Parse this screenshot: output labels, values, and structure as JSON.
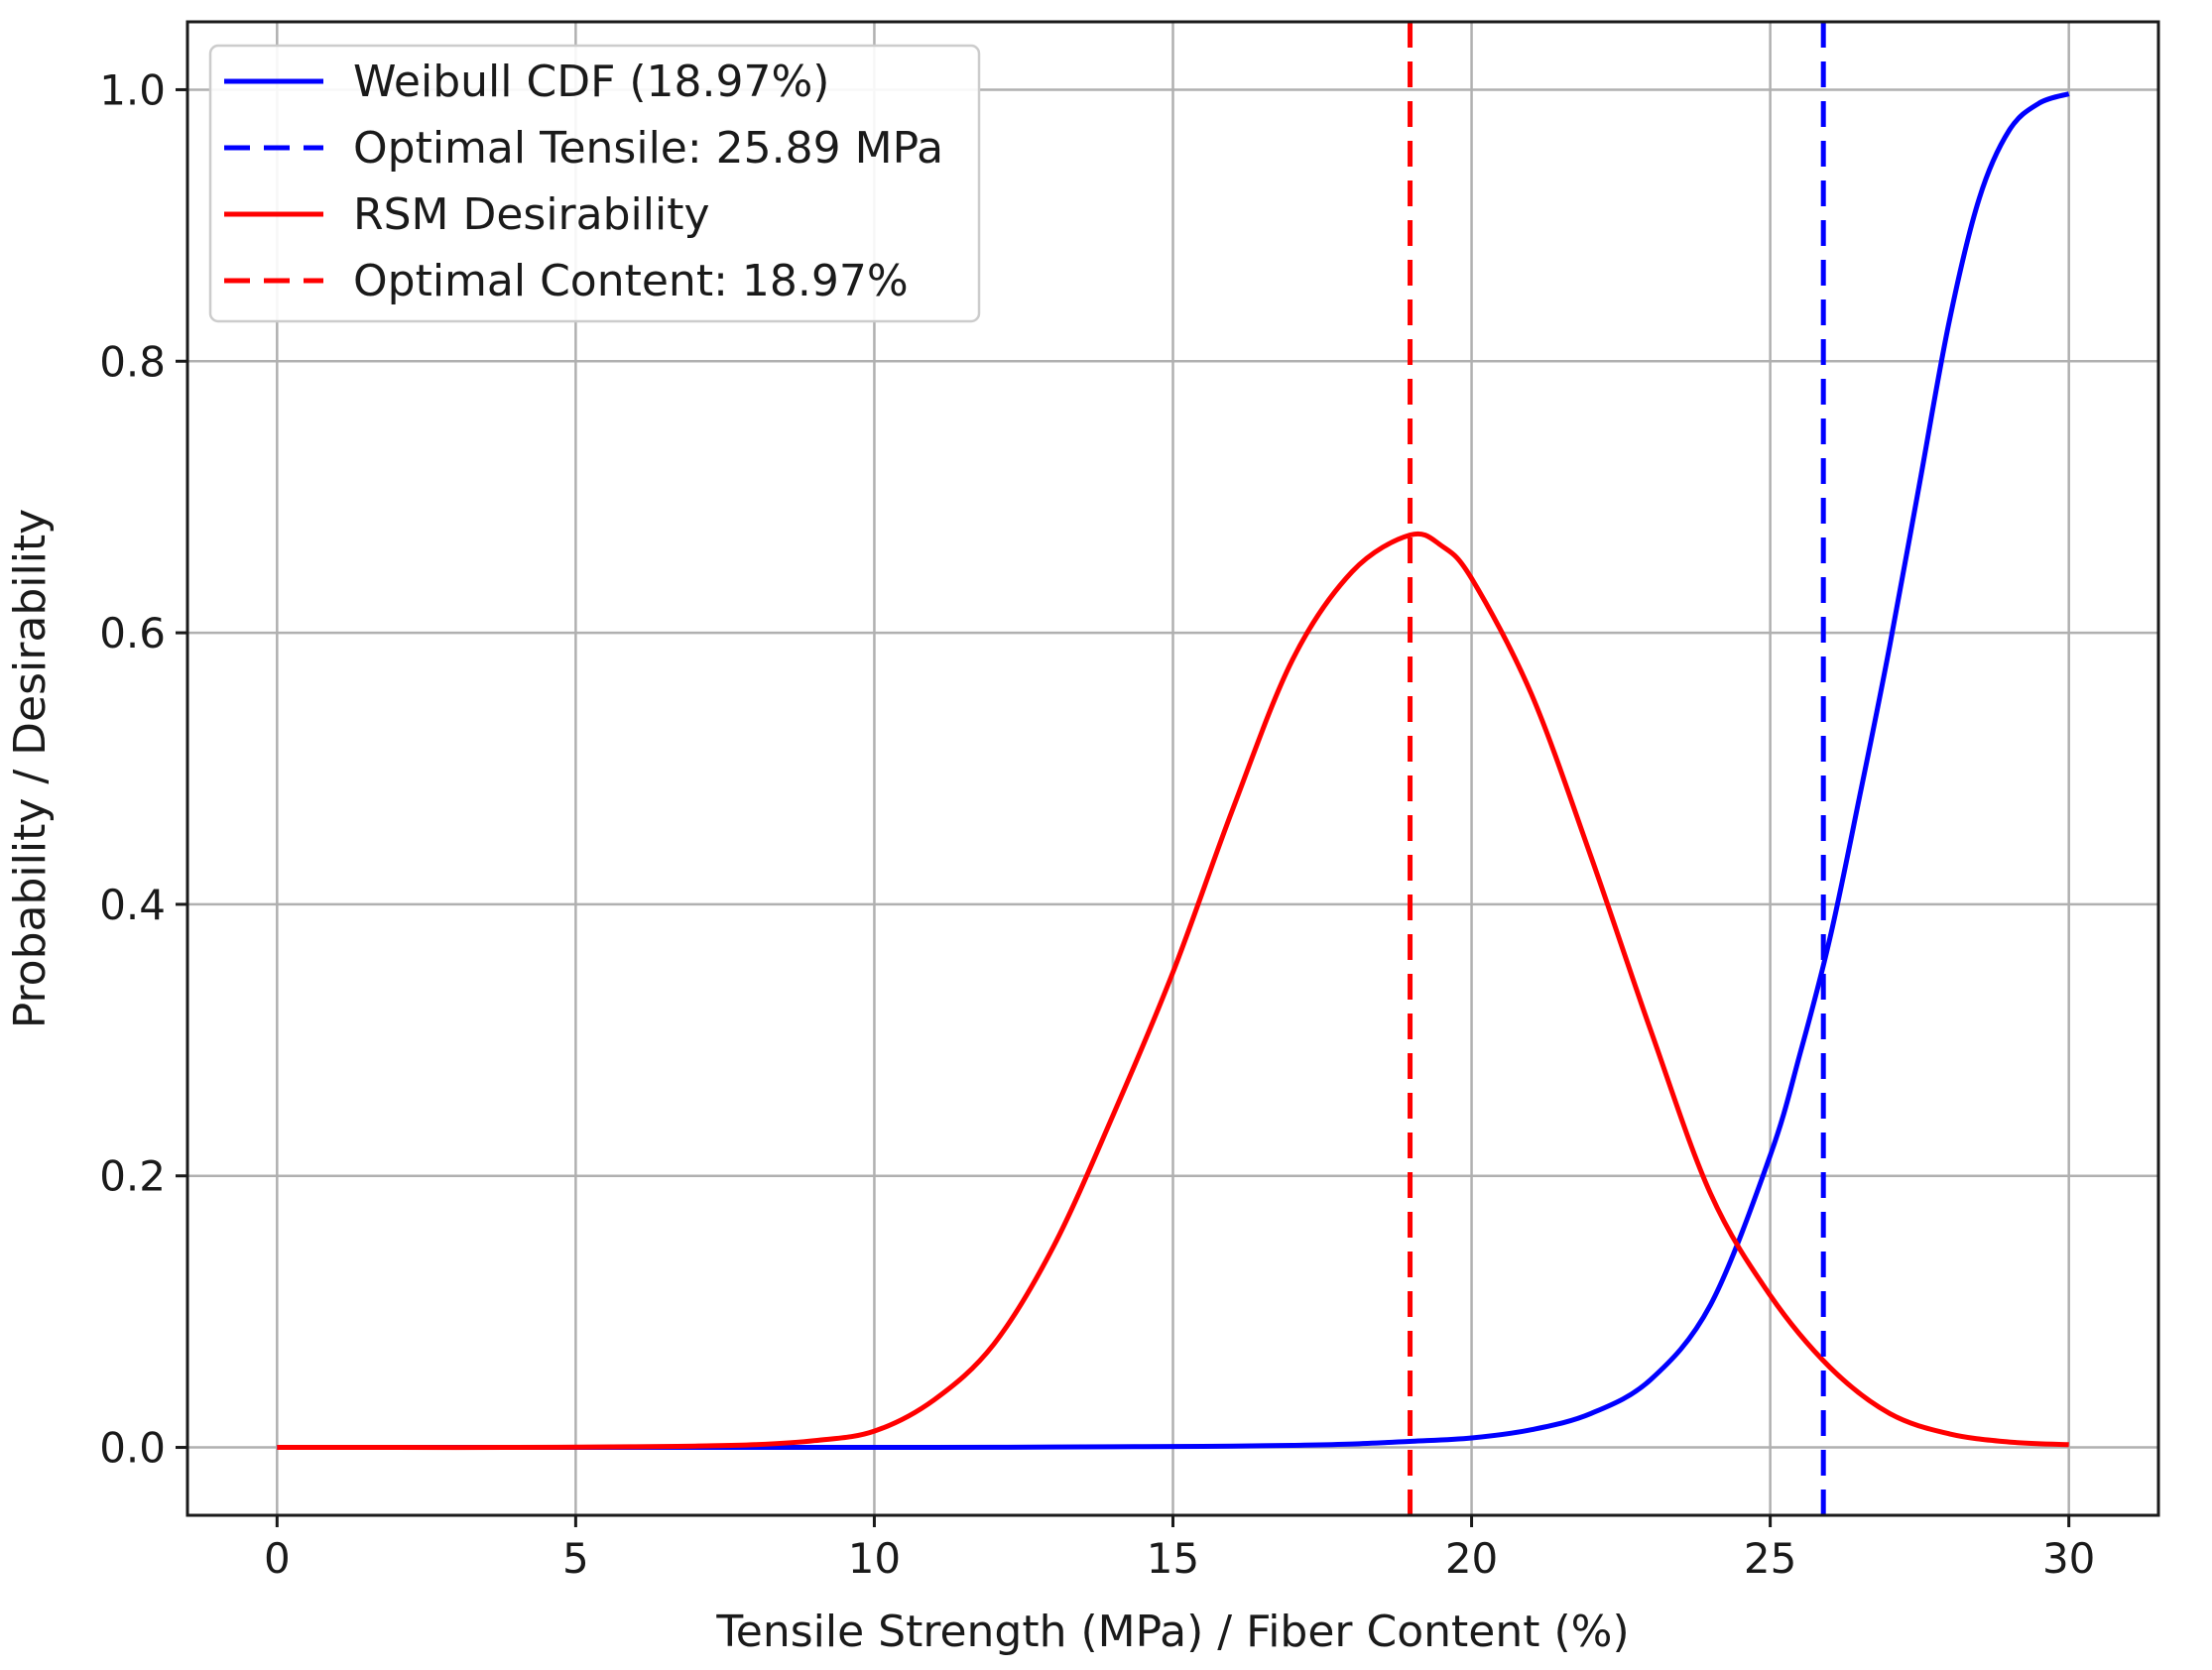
{
  "chart_data": {
    "type": "line",
    "xlabel": "Tensile Strength (MPa) / Fiber Content (%)",
    "ylabel": "Probability / Desirability",
    "xlim": [
      -1.5,
      31.5
    ],
    "ylim": [
      -0.05,
      1.05
    ],
    "x_ticks": [
      0,
      5,
      10,
      15,
      20,
      25,
      30
    ],
    "y_ticks": [
      0.0,
      0.2,
      0.4,
      0.6,
      0.8,
      1.0
    ],
    "x_tick_labels": [
      "0",
      "5",
      "10",
      "15",
      "20",
      "25",
      "30"
    ],
    "y_tick_labels": [
      "0.0",
      "0.2",
      "0.4",
      "0.6",
      "0.8",
      "1.0"
    ],
    "grid": true,
    "legend_position": "top-left",
    "series": [
      {
        "name": "Weibull CDF (18.97%)",
        "color": "#0000ff",
        "style": "solid",
        "x": [
          0,
          1,
          2,
          3,
          4,
          5,
          6,
          7,
          8,
          9,
          10,
          11,
          12,
          13,
          14,
          15,
          16,
          17,
          18,
          19,
          20,
          21,
          22,
          23,
          24,
          25,
          25.5,
          26,
          26.5,
          27,
          27.5,
          28,
          28.5,
          29,
          29.5,
          30
        ],
        "y": [
          0,
          0,
          0,
          0,
          0,
          0,
          0,
          0,
          0,
          0,
          0,
          0,
          0.0001,
          0.0003,
          0.0005,
          0.0007,
          0.001,
          0.0015,
          0.0025,
          0.0045,
          0.007,
          0.013,
          0.025,
          0.05,
          0.105,
          0.215,
          0.29,
          0.375,
          0.48,
          0.59,
          0.71,
          0.83,
          0.92,
          0.97,
          0.99,
          0.997
        ]
      },
      {
        "name": "RSM Desirability",
        "color": "#ff0000",
        "style": "solid",
        "x": [
          0,
          2,
          4,
          6,
          7,
          8,
          9,
          10,
          11,
          12,
          13,
          14,
          15,
          16,
          17,
          18,
          18.97,
          19.5,
          20,
          21,
          22,
          23,
          24,
          25,
          26,
          27,
          28,
          29,
          30
        ],
        "y": [
          0,
          0,
          0,
          0.0005,
          0.001,
          0.002,
          0.005,
          0.012,
          0.035,
          0.076,
          0.148,
          0.245,
          0.35,
          0.47,
          0.58,
          0.645,
          0.672,
          0.664,
          0.64,
          0.555,
          0.435,
          0.307,
          0.187,
          0.112,
          0.059,
          0.025,
          0.01,
          0.004,
          0.002
        ]
      },
      {
        "name": "Optimal Tensile: 25.89 MPa",
        "color": "#0000ff",
        "style": "dashed",
        "vline_x": 25.89
      },
      {
        "name": "Optimal Content: 18.97%",
        "color": "#ff0000",
        "style": "dashed",
        "vline_x": 18.97
      }
    ],
    "legend_order": [
      0,
      2,
      1,
      3
    ]
  }
}
